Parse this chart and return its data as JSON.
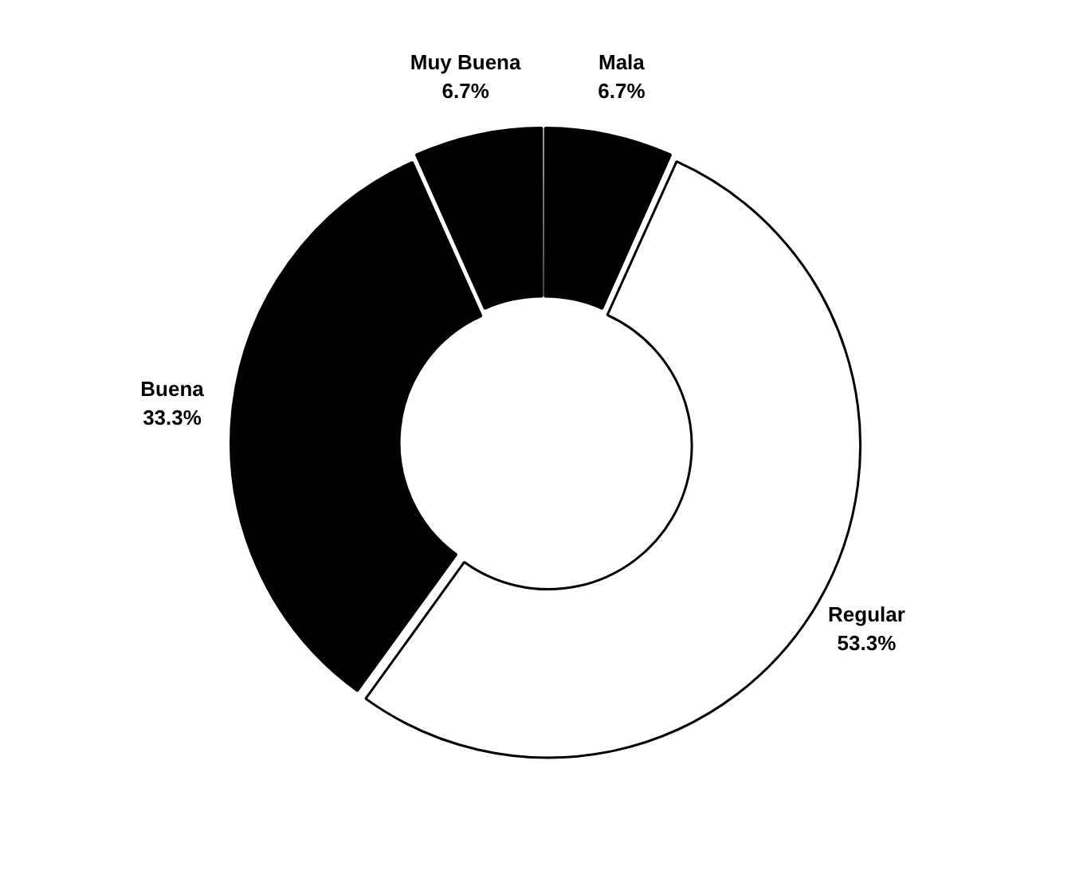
{
  "chart_data": {
    "type": "donut",
    "categories": [
      "Mala",
      "Regular",
      "Buena",
      "Muy Buena"
    ],
    "values": [
      6.7,
      53.3,
      33.3,
      6.7
    ],
    "colors": [
      "#000000",
      "#ffffff",
      "#000000",
      "#000000"
    ],
    "value_labels": [
      "6.7%",
      "53.3%",
      "33.3%",
      "6.7%"
    ],
    "legend": false
  }
}
